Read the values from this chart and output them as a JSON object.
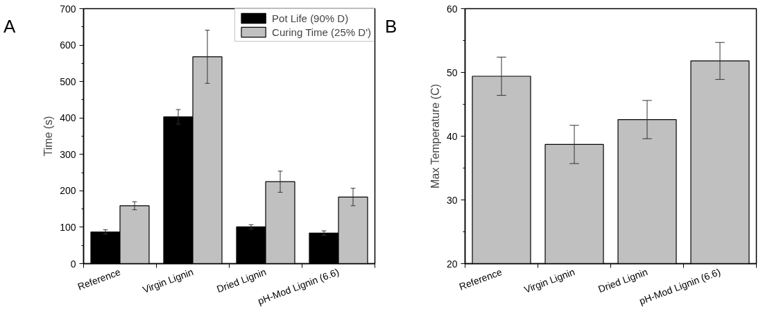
{
  "chart_data": [
    {
      "type": "bar",
      "annotations": [
        "A"
      ],
      "ylabel": "Time (s)",
      "categories": [
        "Reference",
        "Virgin Lignin",
        "Dried Lignin",
        "pH-Mod Lignin (6.6)"
      ],
      "ylim": [
        0,
        700
      ],
      "yticks": [
        0,
        100,
        200,
        300,
        400,
        500,
        600,
        700
      ],
      "legend": "top right",
      "grid": false,
      "series": [
        {
          "name": "Pot Life (90% D)",
          "color": "#000000",
          "values": [
            87,
            403,
            101,
            84
          ],
          "errors": [
            6,
            20,
            6,
            6
          ]
        },
        {
          "name": "Curing Time (25% D')",
          "color": "#c0c0c0",
          "values": [
            159,
            568,
            225,
            183
          ],
          "errors": [
            11,
            73,
            29,
            24
          ]
        }
      ]
    },
    {
      "type": "bar",
      "annotations": [
        "B"
      ],
      "ylabel": "Max Temperature (C)",
      "categories": [
        "Reference",
        "Virgin Lignin",
        "Dried Lignin",
        "pH-Mod Lignin (6.6)"
      ],
      "ylim": [
        20,
        60
      ],
      "yticks": [
        20,
        30,
        40,
        50,
        60
      ],
      "grid": false,
      "series": [
        {
          "color": "#c0c0c0",
          "values": [
            49.4,
            38.7,
            42.6,
            51.8
          ],
          "errors": [
            3,
            3,
            3,
            2.9
          ]
        }
      ]
    }
  ]
}
